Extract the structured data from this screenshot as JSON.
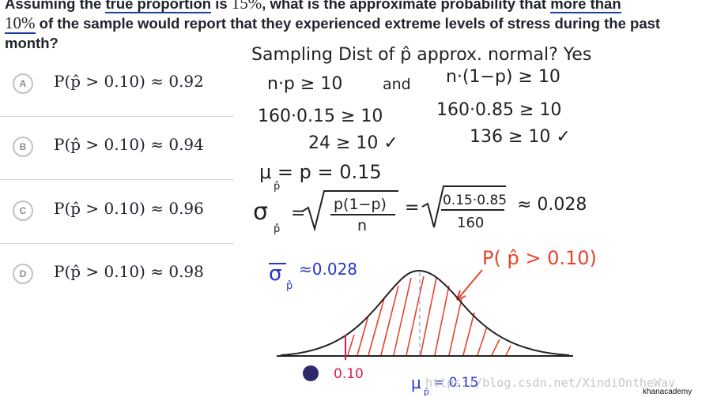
{
  "question": {
    "part1": "Assuming the ",
    "part2": "true proportion",
    "part3": " is ",
    "part4": "15%",
    "part5": ", what is the approximate probability that ",
    "part6": "more than",
    "part7": "10%",
    "part8": " of the sample would report that they experienced extreme levels of stress during the past month?"
  },
  "choices": [
    {
      "letter": "A",
      "text": "P(p̂ > 0.10) ≈ 0.92"
    },
    {
      "letter": "B",
      "text": "P(p̂ > 0.10) ≈ 0.94"
    },
    {
      "letter": "C",
      "text": "P(p̂ > 0.10) ≈ 0.96"
    },
    {
      "letter": "D",
      "text": "P(p̂ > 0.10) ≈ 0.98"
    }
  ],
  "work": {
    "line1": "Sampling Dist of p̂ approx. normal? Yes",
    "cond_left": "n·p ≥ 10",
    "and": "and",
    "cond_right": "n·(1−p) ≥ 10",
    "calc_left": "160·0.15 ≥ 10",
    "calc_right": "160·0.85 ≥ 10",
    "res_left": "24 ≥ 10 ✓",
    "res_right": "136 ≥ 10 ✓",
    "mu_line": "μ = p = 0.15",
    "mu_sub": "p̂",
    "sigma_sym": "σ",
    "sigma_sub": "p̂",
    "eq": "=",
    "frac1_num": "p(1−p)",
    "frac1_den": "n",
    "frac2_num": "0.15·0.85",
    "frac2_den": "160",
    "approx": "≈ 0.028",
    "sigma_label": "σ",
    "sigma_label_sub": "p̂",
    "sigma_label_val": "≈0.028",
    "prob_label": "P( p̂ > 0.10)",
    "x_low": "0.10",
    "x_mean": "μ",
    "x_mean_sub": "p̂",
    "x_mean_val": "= 0.15"
  },
  "watermark": "https://blog.csdn.net/XindiOntheWay",
  "logo": "khanacademy",
  "colors": {
    "pen": "#222222",
    "blue": "#2b34c9",
    "red": "#e8432a",
    "pink": "#d8194f",
    "purple": "#2e2a6e"
  }
}
